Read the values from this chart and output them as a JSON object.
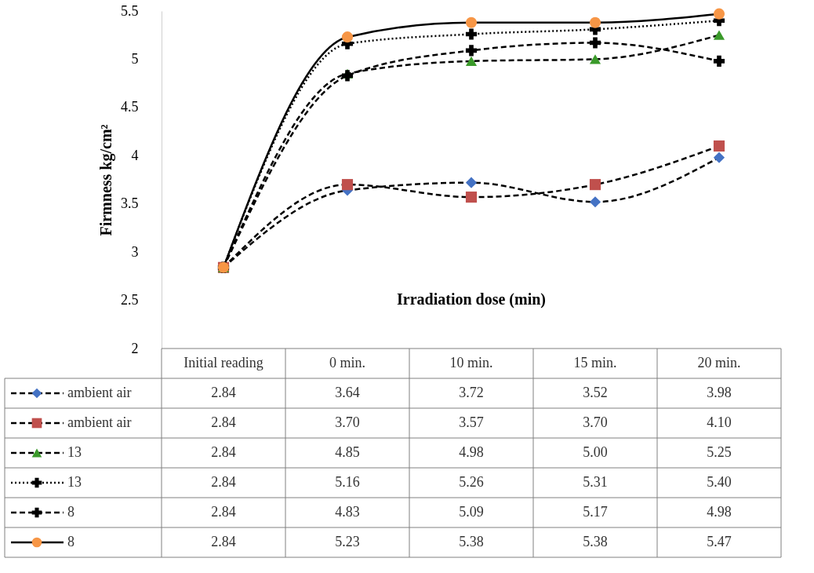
{
  "chart_data": {
    "type": "line",
    "ylabel": "Firmness kg/cm²",
    "xlabel": "Irradiation dose (min)",
    "categories": [
      "Initial reading",
      "0 min.",
      "10 min.",
      "15 min.",
      "20 min."
    ],
    "ylim": [
      2,
      5.5
    ],
    "yticks": [
      2,
      2.5,
      3,
      3.5,
      4,
      4.5,
      5,
      5.5
    ],
    "grid": false,
    "legend": "bottom",
    "series": [
      {
        "name": "ambient air",
        "color": "#4472c4",
        "marker": "diamond",
        "line_style": "dashed",
        "values": [
          2.84,
          3.64,
          3.72,
          3.52,
          3.98
        ],
        "value_labels": [
          "2.84",
          "3.64",
          "3.72",
          "3.52",
          "3.98"
        ]
      },
      {
        "name": "ambient air",
        "color": "#c0504d",
        "marker": "square",
        "line_style": "dashed",
        "values": [
          2.84,
          3.7,
          3.57,
          3.7,
          4.1
        ],
        "value_labels": [
          "2.84",
          "3.70",
          "3.57",
          "3.70",
          "4.10"
        ]
      },
      {
        "name": "13",
        "color": "#3a9a2a",
        "marker": "triangle",
        "line_style": "dashed",
        "values": [
          2.84,
          4.85,
          4.98,
          5.0,
          5.25
        ],
        "value_labels": [
          "2.84",
          "4.85",
          "4.98",
          "5.00",
          "5.25"
        ]
      },
      {
        "name": "13",
        "color": "#000000",
        "marker": "cross",
        "line_style": "dotted",
        "values": [
          2.84,
          5.16,
          5.26,
          5.31,
          5.4
        ],
        "value_labels": [
          "2.84",
          "5.16",
          "5.26",
          "5.31",
          "5.40"
        ]
      },
      {
        "name": "8",
        "color": "#000000",
        "marker": "cross",
        "line_style": "dashed",
        "values": [
          2.84,
          4.83,
          5.09,
          5.17,
          4.98
        ],
        "value_labels": [
          "2.84",
          "4.83",
          "5.09",
          "5.17",
          "4.98"
        ]
      },
      {
        "name": "8",
        "color": "#f79646",
        "marker": "circle",
        "line_style": "solid",
        "values": [
          2.84,
          5.23,
          5.38,
          5.38,
          5.47
        ],
        "value_labels": [
          "2.84",
          "5.23",
          "5.38",
          "5.38",
          "5.47"
        ]
      }
    ]
  }
}
